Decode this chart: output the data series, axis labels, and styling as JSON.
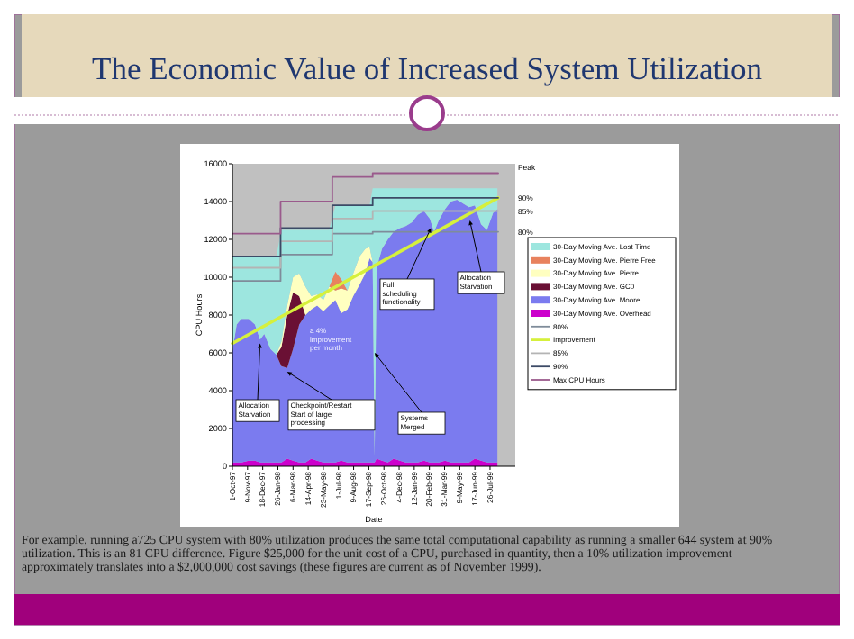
{
  "chart_data": {
    "type": "area",
    "stacked": true,
    "title": "The Economic Value of Increased System Utilization",
    "xlabel": "Date",
    "ylabel": "CPU Hours",
    "legend": "right",
    "xlim": [
      "1997-10-01",
      "1999-09-29"
    ],
    "ylim": [
      0,
      16000
    ],
    "yticks": [
      0,
      2000,
      4000,
      6000,
      8000,
      10000,
      12000,
      14000,
      16000
    ],
    "xticks": [
      {
        "value": "1997-10-01",
        "label": "1-Oct-97"
      },
      {
        "value": "1997-11-09",
        "label": "9-Nov-97"
      },
      {
        "value": "1997-12-18",
        "label": "18-Dec-97"
      },
      {
        "value": "1998-01-26",
        "label": "26-Jan-98"
      },
      {
        "value": "1998-03-06",
        "label": "6-Mar-98"
      },
      {
        "value": "1998-04-14",
        "label": "14-Apr-98"
      },
      {
        "value": "1998-05-23",
        "label": "23-May-98"
      },
      {
        "value": "1998-07-01",
        "label": "1-Jul-98"
      },
      {
        "value": "1998-08-09",
        "label": "9-Aug-98"
      },
      {
        "value": "1998-09-17",
        "label": "17-Sep-98"
      },
      {
        "value": "1998-10-26",
        "label": "26-Oct-98"
      },
      {
        "value": "1998-12-04",
        "label": "4-Dec-98"
      },
      {
        "value": "1999-01-12",
        "label": "12-Jan-99"
      },
      {
        "value": "1999-02-20",
        "label": "20-Feb-99"
      },
      {
        "value": "1999-03-31",
        "label": "31-Mar-99"
      },
      {
        "value": "1999-05-09",
        "label": "9-May-99"
      },
      {
        "value": "1999-06-17",
        "label": "17-Jun-99"
      },
      {
        "value": "1999-07-26",
        "label": "26-Jul-99"
      }
    ],
    "x": [
      "1997-10-01",
      "1997-10-12",
      "1997-10-24",
      "1997-11-12",
      "1997-11-28",
      "1997-12-11",
      "1997-12-22",
      "1998-01-07",
      "1998-01-22",
      "1998-02-04",
      "1998-02-19",
      "1998-03-06",
      "1998-03-22",
      "1998-04-07",
      "1998-04-22",
      "1998-05-07",
      "1998-05-23",
      "1998-06-07",
      "1998-06-23",
      "1998-07-08",
      "1998-07-24",
      "1998-08-08",
      "1998-08-24",
      "1998-09-08",
      "1998-09-19",
      "1998-09-27",
      "1998-10-02",
      "1998-10-07",
      "1998-10-21",
      "1998-11-05",
      "1998-11-20",
      "1998-12-06",
      "1998-12-21",
      "1999-01-06",
      "1999-01-21",
      "1999-02-06",
      "1999-02-21",
      "1999-03-04",
      "1999-03-16",
      "1999-04-01",
      "1999-04-16",
      "1999-05-02",
      "1999-05-17",
      "1999-06-02",
      "1999-06-17",
      "1999-07-03",
      "1999-07-18",
      "1999-08-03",
      "1999-08-14"
    ],
    "series": [
      {
        "name": "30-Day Moving Ave. Overhead",
        "color": "#cc00cc",
        "values": [
          200,
          200,
          200,
          300,
          300,
          200,
          200,
          200,
          200,
          200,
          400,
          300,
          200,
          200,
          400,
          300,
          200,
          200,
          200,
          300,
          200,
          200,
          200,
          200,
          200,
          200,
          200,
          400,
          300,
          200,
          400,
          300,
          200,
          200,
          200,
          300,
          200,
          200,
          200,
          300,
          200,
          200,
          200,
          200,
          400,
          300,
          200,
          200,
          200
        ]
      },
      {
        "name": "30-Day Moving Ave. Moore",
        "color": "#7b7bef",
        "values": [
          5900,
          7300,
          7600,
          7500,
          7200,
          6500,
          6800,
          6000,
          5700,
          5100,
          4800,
          5900,
          7300,
          7800,
          7900,
          8200,
          8000,
          8300,
          8600,
          7800,
          8100,
          8800,
          9400,
          10000,
          10800,
          10600,
          300,
          10100,
          11200,
          11800,
          12000,
          12300,
          12500,
          12700,
          13100,
          13200,
          12900,
          12200,
          12800,
          13300,
          13800,
          13900,
          13700,
          13500,
          13400,
          12500,
          12300,
          13200,
          13400
        ]
      },
      {
        "name": "30-Day Moving Ave. GC0",
        "color": "#6a1034",
        "values": [
          null,
          null,
          null,
          null,
          null,
          null,
          null,
          null,
          0,
          1000,
          2800,
          3000,
          1500,
          0,
          null,
          null,
          null,
          null,
          null,
          null,
          null,
          null,
          null,
          null,
          null,
          null,
          null,
          null,
          null,
          null,
          null,
          null,
          null,
          null,
          null,
          null,
          null,
          null,
          null,
          null,
          null,
          null,
          null,
          null,
          null,
          null,
          null,
          null,
          null
        ]
      },
      {
        "name": "30-Day Moving Ave. Pierre",
        "color": "#ffffc0",
        "values": [
          null,
          null,
          null,
          null,
          null,
          null,
          null,
          null,
          0,
          300,
          500,
          800,
          1200,
          1500,
          700,
          600,
          600,
          1000,
          500,
          1300,
          1000,
          1200,
          1500,
          1300,
          600,
          0,
          null,
          null,
          null,
          null,
          null,
          null,
          null,
          null,
          null,
          null,
          null,
          null,
          null,
          null,
          null,
          null,
          null,
          null,
          null,
          null,
          null,
          null,
          null
        ]
      },
      {
        "name": "30-Day Moving Ave. Pierre Free",
        "color": "#e8825e",
        "values": [
          null,
          null,
          null,
          null,
          null,
          null,
          null,
          null,
          null,
          null,
          null,
          null,
          null,
          null,
          null,
          null,
          null,
          0,
          1000,
          500,
          0,
          null,
          null,
          null,
          null,
          null,
          null,
          null,
          null,
          null,
          null,
          null,
          null,
          null,
          null,
          null,
          null,
          null,
          null,
          null,
          null,
          null,
          null,
          null,
          null,
          null,
          null,
          null,
          null
        ]
      },
      {
        "name": "30-Day Moving Ave. Lost Time",
        "color": "#9de6df",
        "values": [
          5000,
          3600,
          3300,
          3300,
          3600,
          4400,
          4100,
          4900,
          5200,
          5900,
          4000,
          2500,
          2300,
          3000,
          3500,
          3400,
          3700,
          3000,
          3500,
          3900,
          4500,
          3600,
          2700,
          2300,
          2200,
          3900,
          14200,
          4200,
          3200,
          2700,
          2300,
          2100,
          2000,
          1800,
          1400,
          1200,
          1600,
          2300,
          1700,
          1100,
          700,
          600,
          800,
          1000,
          900,
          1900,
          2200,
          1300,
          1100
        ]
      },
      {
        "type": "step",
        "name": "80%",
        "color": "#7f8c9a",
        "x": [
          "1997-10-01",
          "1998-02-02",
          "1998-06-15",
          "1998-09-27",
          "1999-08-16"
        ],
        "values": [
          9800,
          11200,
          12300,
          12400,
          12400
        ]
      },
      {
        "type": "line",
        "name": "Improvement",
        "color": "#d6f03c",
        "x": [
          "1997-10-01",
          "1999-08-16"
        ],
        "values": [
          6500,
          14200
        ]
      },
      {
        "type": "step",
        "name": "85%",
        "color": "#b4b4b4",
        "x": [
          "1997-10-01",
          "1998-02-02",
          "1998-06-15",
          "1998-09-27",
          "1999-08-16"
        ],
        "values": [
          10500,
          11900,
          13100,
          13500,
          13500
        ]
      },
      {
        "type": "step",
        "name": "90%",
        "color": "#3c4a66",
        "x": [
          "1997-10-01",
          "1998-02-02",
          "1998-06-15",
          "1998-09-27",
          "1999-08-16"
        ],
        "values": [
          11100,
          12600,
          13800,
          14200,
          14200
        ]
      },
      {
        "type": "step",
        "name": "Max CPU Hours",
        "color": "#9a5a8c",
        "x": [
          "1997-10-01",
          "1998-02-02",
          "1998-06-15",
          "1998-09-27",
          "1999-08-16"
        ],
        "values": [
          12300,
          14000,
          15300,
          15500,
          15500
        ]
      }
    ],
    "annotations": [
      {
        "text": "Allocation Starvation",
        "x": "1997-12-11",
        "y": 6500
      },
      {
        "text": "Checkpoint/Restart Start of large processing",
        "x": "1998-02-19",
        "y": 5000
      },
      {
        "text": "Systems Merged",
        "x": "1998-10-02",
        "y": 6000
      },
      {
        "text": "Full scheduling functionality",
        "x": "1999-02-24",
        "y": 12600
      },
      {
        "text": "Allocation Starvation",
        "x": "1999-06-04",
        "y": 13000
      },
      "a 4% improvement per month",
      {
        "text": "Peak",
        "x": "1999-08-16",
        "y": 15500
      },
      {
        "text": "90%",
        "x": "1999-08-16",
        "y": 14200
      },
      {
        "text": "85%",
        "x": "1999-08-16",
        "y": 13500
      },
      {
        "text": "80%",
        "x": "1999-08-16",
        "y": 12400
      },
      "For example, running a725 CPU system with 80% utilization produces the same total computational capability as running a smaller 644 system at 90% utilization. This is an 81 CPU difference. Figure $25,000 for the unit cost of a CPU, purchased in quantity, then a 10% utilization improvement approximately translates into a $2,000,000 cost savings (these figures are current as of November 1999)."
    ]
  }
}
